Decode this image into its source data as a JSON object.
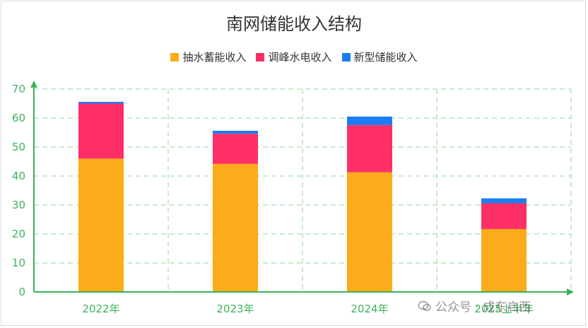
{
  "chart_data": {
    "type": "bar",
    "stacked": true,
    "title": "南网储能收入结构",
    "categories": [
      "2022年",
      "2023年",
      "2024年",
      "2025上半年"
    ],
    "series": [
      {
        "name": "抽水蓄能收入",
        "color": "#fcab1b",
        "values": [
          46.0,
          44.2,
          41.3,
          21.7
        ]
      },
      {
        "name": "调峰水电收入",
        "color": "#fd2f66",
        "values": [
          19.0,
          10.4,
          16.3,
          8.9
        ]
      },
      {
        "name": "新型储能收入",
        "color": "#1a7ef2",
        "values": [
          0.6,
          1.0,
          2.9,
          1.7
        ]
      }
    ],
    "yticks": [
      "0",
      "10",
      "20",
      "30",
      "40",
      "50",
      "60",
      "70"
    ],
    "ylim": [
      0,
      70
    ],
    "grid": true,
    "legend_position": "top-center",
    "axis_color": "#3cb35a"
  },
  "watermark": "公众号 · 成东启西"
}
